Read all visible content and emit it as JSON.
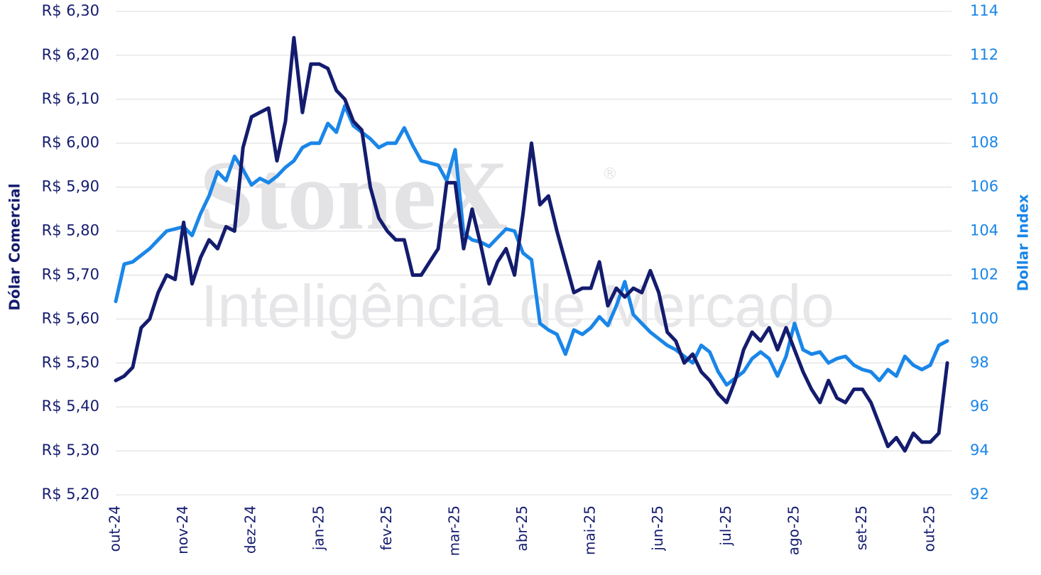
{
  "chart_data": {
    "type": "line",
    "watermark": {
      "brand": "StoneX",
      "mark": "®",
      "subtitle": "Inteligência de Mercado"
    },
    "y_label": "Dólar Comercial",
    "y2_label": "Dollar Index",
    "categories": [
      "out-24",
      null,
      null,
      null,
      null,
      null,
      null,
      null,
      "nov-24",
      null,
      null,
      null,
      null,
      null,
      null,
      null,
      "dez-24",
      null,
      null,
      null,
      null,
      null,
      null,
      null,
      "jan-25",
      null,
      null,
      null,
      null,
      null,
      null,
      null,
      "fev-25",
      null,
      null,
      null,
      null,
      null,
      null,
      null,
      "mar-25",
      null,
      null,
      null,
      null,
      null,
      null,
      null,
      "abr-25",
      null,
      null,
      null,
      null,
      null,
      null,
      null,
      "mai-25",
      null,
      null,
      null,
      null,
      null,
      null,
      null,
      "jun-25",
      null,
      null,
      null,
      null,
      null,
      null,
      null,
      "jul-25",
      null,
      null,
      null,
      null,
      null,
      null,
      null,
      "ago-25",
      null,
      null,
      null,
      null,
      null,
      null,
      null,
      "set-25",
      null,
      null,
      null,
      null,
      null,
      null,
      null,
      "out-25",
      null,
      null
    ],
    "series": [
      {
        "color": "#141c6e",
        "axis": "y",
        "values": [
          5.46,
          5.47,
          5.49,
          5.58,
          5.6,
          5.66,
          5.7,
          5.69,
          5.82,
          5.68,
          5.74,
          5.78,
          5.76,
          5.81,
          5.8,
          5.99,
          6.06,
          6.07,
          6.08,
          5.96,
          6.05,
          6.24,
          6.07,
          6.18,
          6.18,
          6.17,
          6.12,
          6.1,
          6.05,
          6.03,
          5.9,
          5.83,
          5.8,
          5.78,
          5.78,
          5.7,
          5.7,
          5.73,
          5.76,
          5.91,
          5.91,
          5.76,
          5.85,
          5.77,
          5.68,
          5.73,
          5.76,
          5.7,
          5.84,
          6.0,
          5.86,
          5.88,
          5.8,
          5.73,
          5.66,
          5.67,
          5.67,
          5.73,
          5.63,
          5.67,
          5.65,
          5.67,
          5.66,
          5.71,
          5.66,
          5.57,
          5.55,
          5.5,
          5.52,
          5.48,
          5.46,
          5.43,
          5.41,
          5.46,
          5.53,
          5.57,
          5.55,
          5.58,
          5.53,
          5.58,
          5.53,
          5.48,
          5.44,
          5.41,
          5.46,
          5.42,
          5.41,
          5.44,
          5.44,
          5.41,
          5.36,
          5.31,
          5.33,
          5.3,
          5.34,
          5.32,
          5.32,
          5.34,
          5.5
        ]
      },
      {
        "color": "#1a86e8",
        "axis": "y2",
        "values": [
          100.8,
          102.5,
          102.6,
          102.9,
          103.2,
          103.6,
          104.0,
          104.1,
          104.2,
          103.8,
          104.8,
          105.6,
          106.7,
          106.3,
          107.4,
          106.8,
          106.1,
          106.4,
          106.2,
          106.5,
          106.9,
          107.2,
          107.8,
          108.0,
          108.0,
          108.9,
          108.5,
          109.7,
          108.8,
          108.5,
          108.2,
          107.8,
          108.0,
          108.0,
          108.7,
          107.9,
          107.2,
          107.1,
          107.0,
          106.3,
          107.7,
          103.9,
          103.6,
          103.5,
          103.3,
          103.7,
          104.1,
          104.0,
          103.0,
          102.7,
          99.8,
          99.5,
          99.3,
          98.4,
          99.5,
          99.3,
          99.6,
          100.1,
          99.7,
          100.6,
          101.7,
          100.2,
          99.8,
          99.4,
          99.1,
          98.8,
          98.6,
          98.3,
          98.0,
          98.8,
          98.5,
          97.6,
          97.0,
          97.3,
          97.6,
          98.2,
          98.5,
          98.2,
          97.4,
          98.3,
          99.8,
          98.6,
          98.4,
          98.5,
          98.0,
          98.2,
          98.3,
          97.9,
          97.7,
          97.6,
          97.2,
          97.7,
          97.4,
          98.3,
          97.9,
          97.7,
          97.9,
          98.8,
          99.0
        ]
      }
    ],
    "ylim": [
      5.2,
      6.3
    ],
    "yticks": [
      {
        "value": 5.2,
        "label": "R$ 5,20"
      },
      {
        "value": 5.3,
        "label": "R$ 5,30"
      },
      {
        "value": 5.4,
        "label": "R$ 5,40"
      },
      {
        "value": 5.5,
        "label": "R$ 5,50"
      },
      {
        "value": 5.6,
        "label": "R$ 5,60"
      },
      {
        "value": 5.7,
        "label": "R$ 5,70"
      },
      {
        "value": 5.8,
        "label": "R$ 5,80"
      },
      {
        "value": 5.9,
        "label": "R$ 5,90"
      },
      {
        "value": 6.0,
        "label": "R$ 6,00"
      },
      {
        "value": 6.1,
        "label": "R$ 6,10"
      },
      {
        "value": 6.2,
        "label": "R$ 6,20"
      },
      {
        "value": 6.3,
        "label": "R$ 6,30"
      }
    ],
    "y2lim": [
      92,
      114
    ],
    "y2ticks": [
      92,
      94,
      96,
      98,
      100,
      102,
      104,
      106,
      108,
      110,
      112,
      114
    ],
    "grid": true
  }
}
